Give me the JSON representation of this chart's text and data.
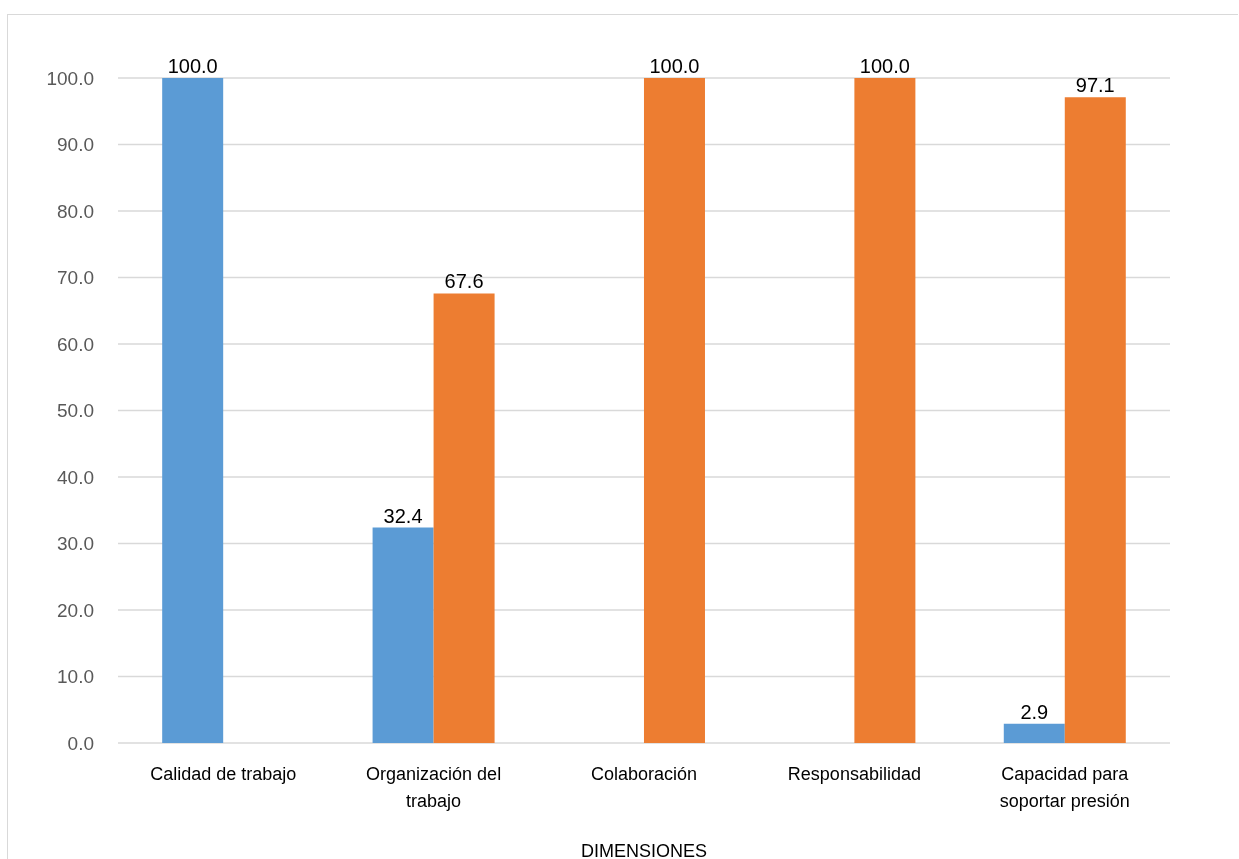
{
  "chart_data": {
    "type": "bar",
    "categories": [
      "Calidad de trabajo",
      "Organización del trabajo",
      "Colaboración",
      "Responsabilidad",
      "Capacidad para soportar presión"
    ],
    "series": [
      {
        "color": "#5b9bd5",
        "values": [
          100,
          32.4,
          null,
          null,
          2.9
        ],
        "value_labels": [
          "100.0",
          "32.4",
          null,
          null,
          "2.9"
        ]
      },
      {
        "color": "#ed7d31",
        "values": [
          null,
          67.6,
          100,
          100,
          97.1
        ],
        "value_labels": [
          null,
          "67.6",
          "100.0",
          "100.0",
          "97.1"
        ]
      }
    ],
    "xlabel": "DIMENSIONES",
    "ylim": [
      0,
      100
    ],
    "yticks": [
      {
        "value": 0,
        "label": "0.0"
      },
      {
        "value": 10,
        "label": "10.0"
      },
      {
        "value": 20,
        "label": "20.0"
      },
      {
        "value": 30,
        "label": "30.0"
      },
      {
        "value": 40,
        "label": "40.0"
      },
      {
        "value": 50,
        "label": "50.0"
      },
      {
        "value": 60,
        "label": "60.0"
      },
      {
        "value": 70,
        "label": "70.0"
      },
      {
        "value": 80,
        "label": "80.0"
      },
      {
        "value": 90,
        "label": "90.0"
      },
      {
        "value": 100,
        "label": "100.0"
      }
    ],
    "grid": "y"
  }
}
